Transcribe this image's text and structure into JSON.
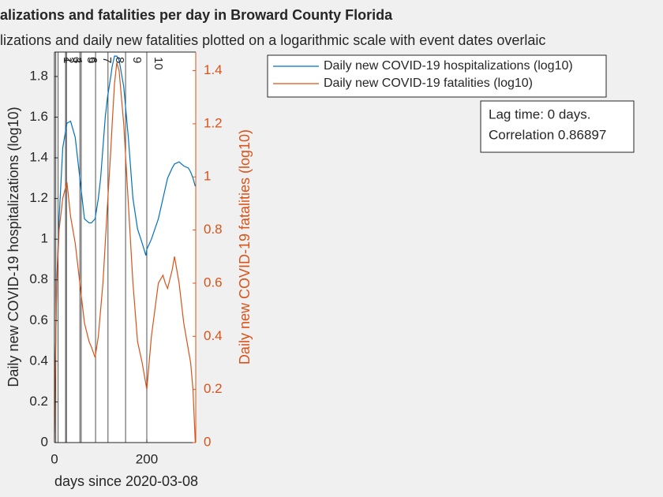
{
  "chart_data": {
    "type": "line",
    "title": "alizations and fatalities per day in Broward County Florida",
    "subtitle": "lizations and daily new fatalities plotted on a logarithmic scale with event dates overlaic",
    "xlabel": "days since 2020-03-08",
    "ylabel": "Daily new COVID-19 hospitalizations (log10)",
    "y2label": "Daily new COVID-19 fatalities (log10)",
    "xlim": [
      0,
      306
    ],
    "xticks": [
      0,
      200
    ],
    "ylim": [
      0,
      1.92
    ],
    "yticks": [
      0,
      0.2,
      0.4,
      0.6,
      0.8,
      1,
      1.2,
      1.4,
      1.6,
      1.8
    ],
    "y2lim": [
      0,
      1.47
    ],
    "y2ticks": [
      0,
      0.2,
      0.4,
      0.6,
      0.8,
      1,
      1.2,
      1.4
    ],
    "x": [
      0,
      2,
      5,
      10,
      18,
      27,
      35,
      45,
      55,
      65,
      75,
      80,
      88,
      95,
      100,
      105,
      110,
      115,
      122,
      125,
      130,
      135,
      140,
      150,
      160,
      170,
      180,
      190,
      198,
      200,
      210,
      225,
      235,
      240,
      245,
      255,
      260,
      270,
      280,
      290,
      295,
      300,
      305
    ],
    "series": [
      {
        "name": "Daily new COVID-19 hospitalizations (log10)",
        "color": "#0072BD",
        "values": [
          0.05,
          0.4,
          0.8,
          1.1,
          1.45,
          1.57,
          1.58,
          1.5,
          1.3,
          1.1,
          1.08,
          1.08,
          1.1,
          1.2,
          1.3,
          1.45,
          1.6,
          1.7,
          1.8,
          1.85,
          1.9,
          1.9,
          1.88,
          1.75,
          1.5,
          1.2,
          1.05,
          0.98,
          0.92,
          0.95,
          1.0,
          1.1,
          1.2,
          1.25,
          1.3,
          1.35,
          1.37,
          1.38,
          1.36,
          1.35,
          1.33,
          1.3,
          1.26
        ]
      },
      {
        "name": "Daily new COVID-19 fatalities (log10)",
        "color": "#D95319",
        "axis": "y2",
        "values": [
          0,
          0.3,
          0.6,
          0.8,
          0.92,
          0.98,
          0.85,
          0.75,
          0.6,
          0.45,
          0.38,
          0.36,
          0.32,
          0.4,
          0.5,
          0.6,
          0.75,
          0.9,
          1.1,
          1.2,
          1.35,
          1.43,
          1.4,
          1.2,
          0.9,
          0.6,
          0.38,
          0.3,
          0.22,
          0.2,
          0.4,
          0.6,
          0.63,
          0.6,
          0.58,
          0.65,
          0.7,
          0.6,
          0.45,
          0.35,
          0.3,
          0.2,
          0
        ]
      }
    ],
    "events": [
      {
        "label": "1",
        "day": 3
      },
      {
        "label": "2",
        "day": 8
      },
      {
        "label": "3",
        "day": 24
      },
      {
        "label": "4",
        "day": 26
      },
      {
        "label": "5",
        "day": 55
      },
      {
        "label": "6",
        "day": 58
      },
      {
        "label": "7",
        "day": 89
      },
      {
        "label": "8",
        "day": 116
      },
      {
        "label": "9",
        "day": 154
      },
      {
        "label": "10",
        "day": 200
      }
    ],
    "annotation": [
      "Lag time: 0 days.",
      "Correlation 0.86897"
    ]
  }
}
